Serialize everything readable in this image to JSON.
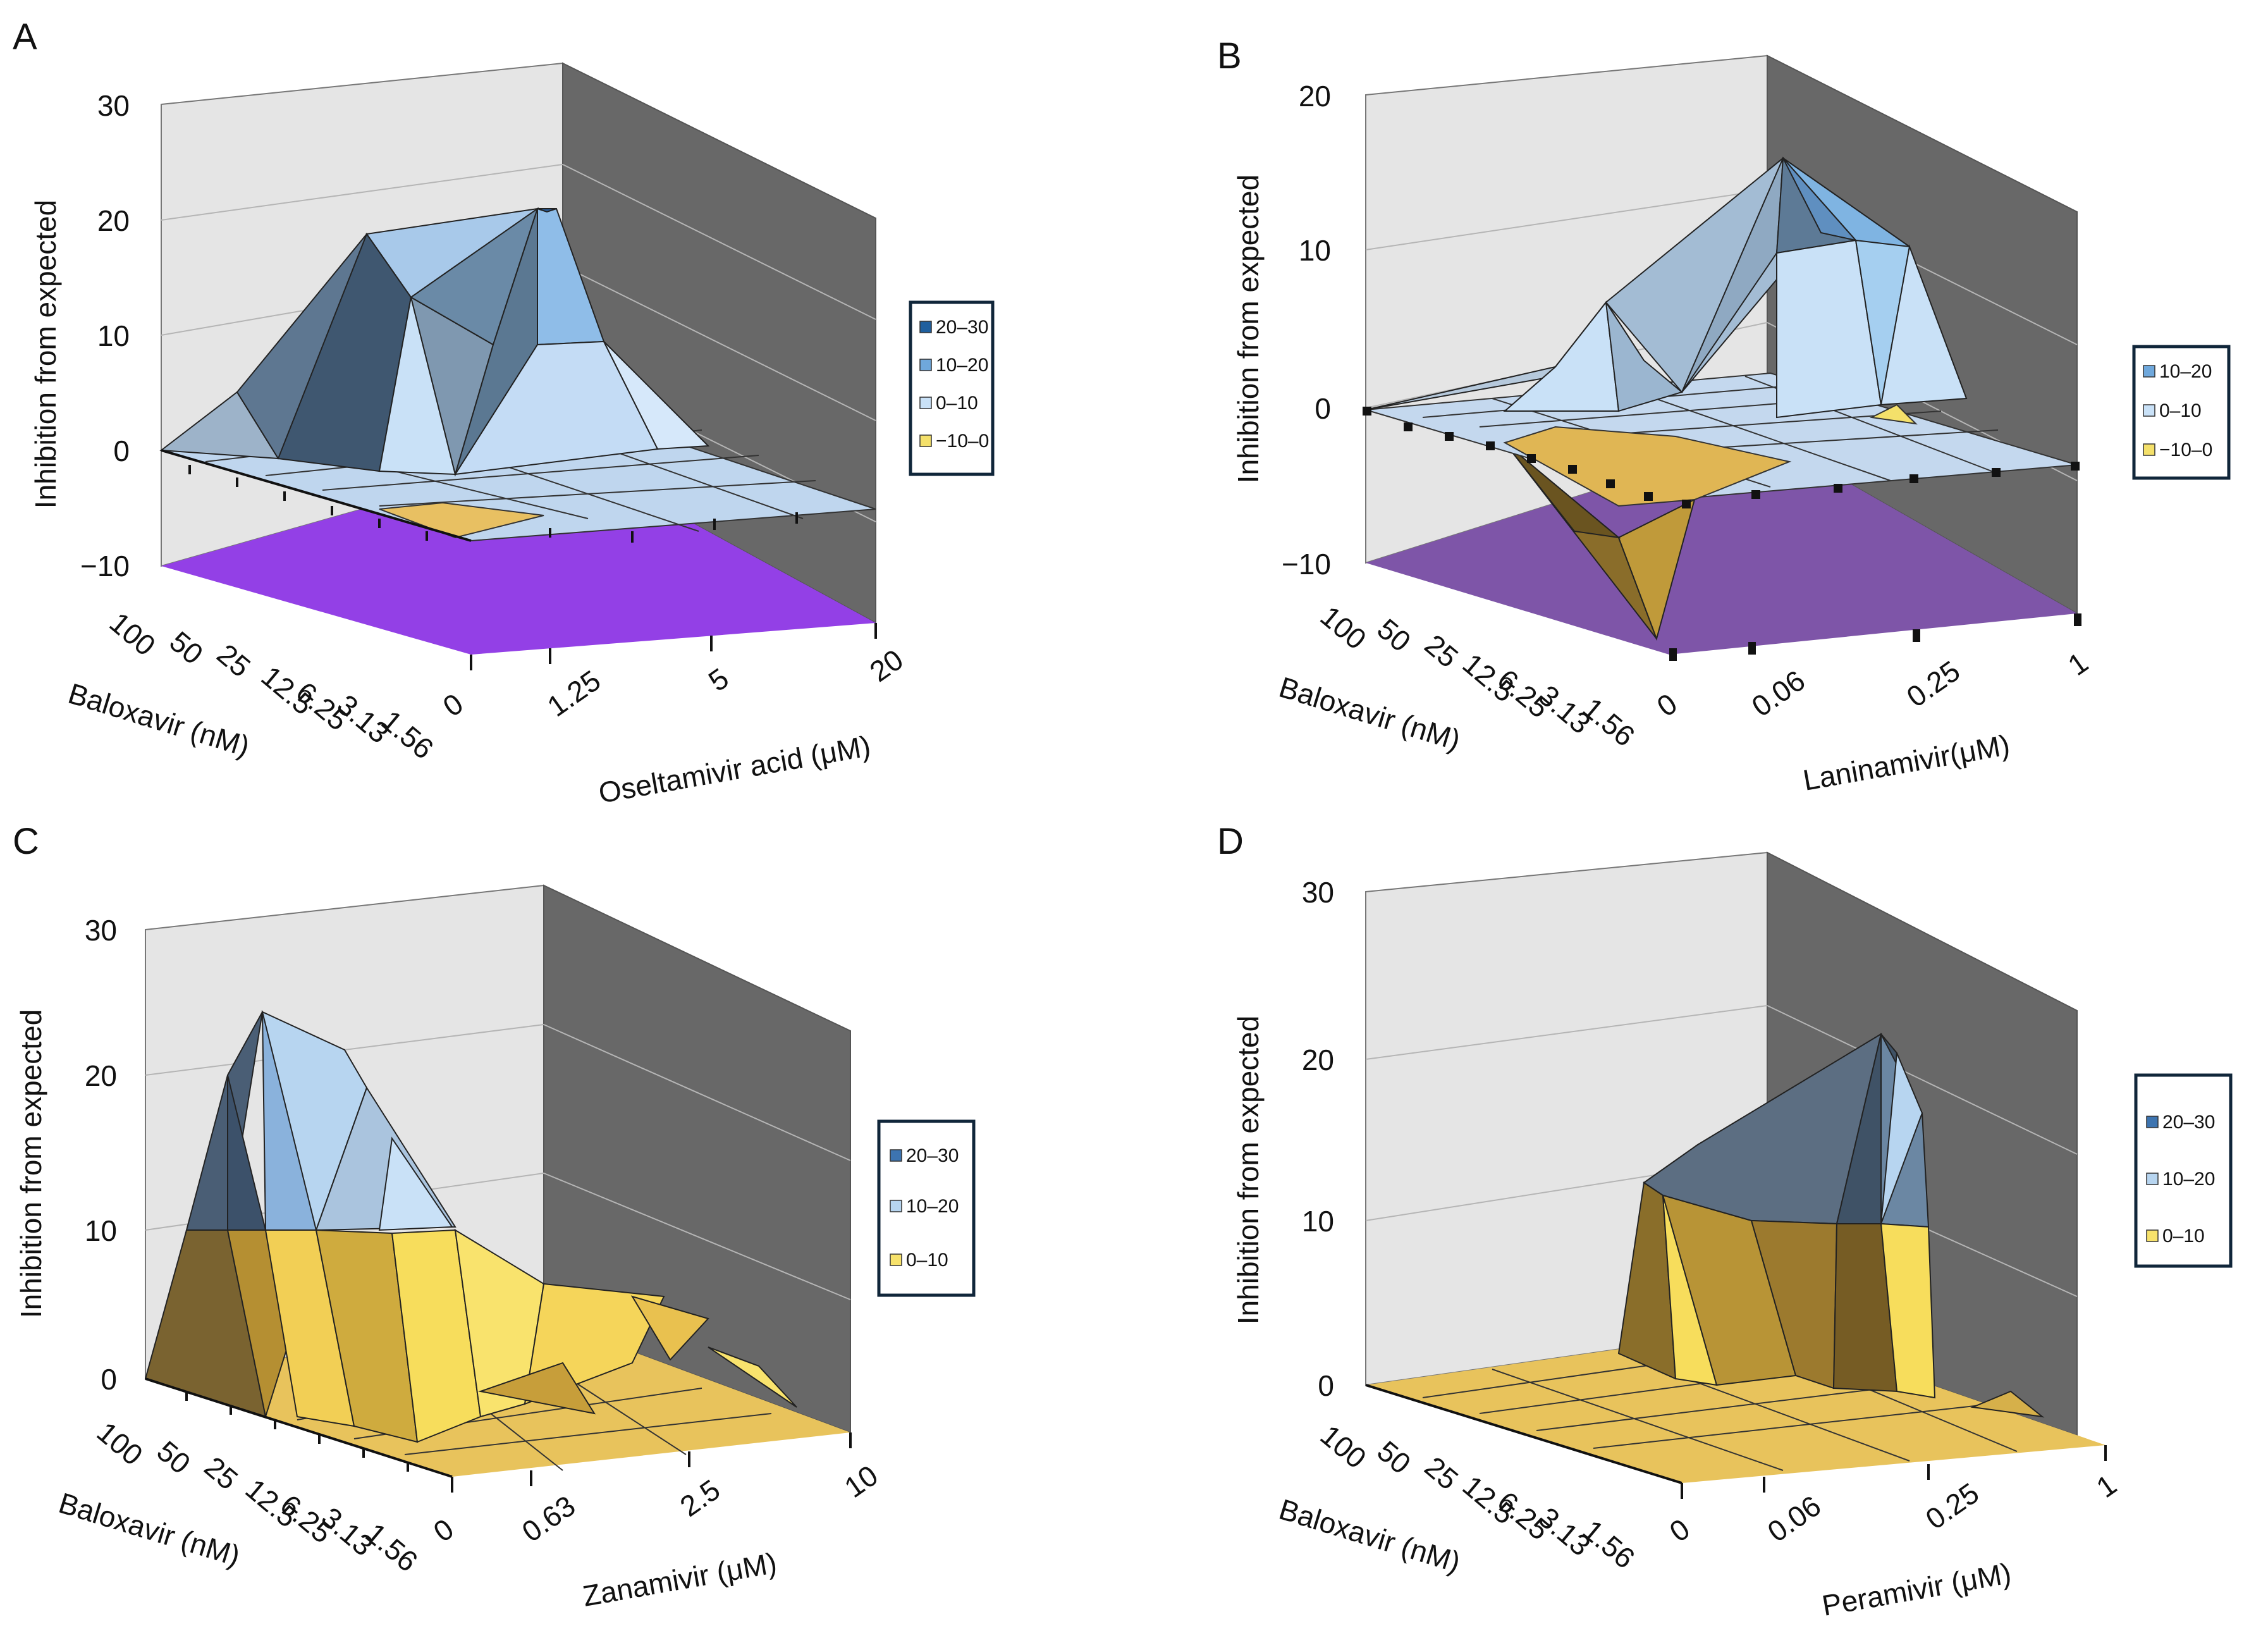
{
  "chart_data": [
    {
      "type": "surface3d",
      "panel_label": "A",
      "zlabel": "Inhibition from expected",
      "xlabel": "Baloxavir (nM)",
      "ylabel": "Oseltamivir acid (μM)",
      "x_ticks": [
        "100",
        "50",
        "25",
        "12.5",
        "6.25",
        "3.13",
        "1.56"
      ],
      "y_ticks": [
        "0",
        "1.25",
        "5",
        "20"
      ],
      "z_ticks": [
        "30",
        "20",
        "10",
        "0",
        "−10"
      ],
      "zlim": [
        -10,
        30
      ],
      "floor_color": "#9340e6",
      "legend": [
        {
          "label": "20–30",
          "color": "#1f5f9e"
        },
        {
          "label": "10–20",
          "color": "#6fa8dc"
        },
        {
          "label": "0–10",
          "color": "#c9e1f7"
        },
        {
          "label": "−10–0",
          "color": "#f4e06a"
        }
      ]
    },
    {
      "type": "surface3d",
      "panel_label": "B",
      "zlabel": "Inhibition from expected",
      "xlabel": "Baloxavir (nM)",
      "ylabel": "Laninamivir(μM)",
      "x_ticks": [
        "100",
        "50",
        "25",
        "12.5",
        "6.25",
        "3.13",
        "1.56"
      ],
      "y_ticks": [
        "0",
        "0.06",
        "0.25",
        "1"
      ],
      "z_ticks": [
        "20",
        "10",
        "0",
        "−10"
      ],
      "zlim": [
        -10,
        20
      ],
      "floor_color": "#7e55a8",
      "legend": [
        {
          "label": "10–20",
          "color": "#6fa8dc"
        },
        {
          "label": "0–10",
          "color": "#c9e1f7"
        },
        {
          "label": "−10–0",
          "color": "#f4e06a"
        }
      ]
    },
    {
      "type": "surface3d",
      "panel_label": "C",
      "zlabel": "Inhibition from expected",
      "xlabel": "Baloxavir (nM)",
      "ylabel": "Zanamivir (μM)",
      "x_ticks": [
        "100",
        "50",
        "25",
        "12.5",
        "6.25",
        "3.13",
        "1.56"
      ],
      "y_ticks": [
        "0",
        "0.63",
        "2.5",
        "10"
      ],
      "z_ticks": [
        "30",
        "20",
        "10",
        "0"
      ],
      "zlim": [
        0,
        30
      ],
      "legend": [
        {
          "label": "20–30",
          "color": "#3d74b0"
        },
        {
          "label": "10–20",
          "color": "#b7d5f0"
        },
        {
          "label": "0–10",
          "color": "#f7e26b"
        }
      ]
    },
    {
      "type": "surface3d",
      "panel_label": "D",
      "zlabel": "Inhibition from expected",
      "xlabel": "Baloxavir (nM)",
      "ylabel": "Peramivir (μM)",
      "x_ticks": [
        "100",
        "50",
        "25",
        "12.5",
        "6.25",
        "3.13",
        "1.56"
      ],
      "y_ticks": [
        "0",
        "0.06",
        "0.25",
        "1"
      ],
      "z_ticks": [
        "30",
        "20",
        "10",
        "0"
      ],
      "zlim": [
        0,
        30
      ],
      "legend": [
        {
          "label": "20–30",
          "color": "#3d74b0"
        },
        {
          "label": "10–20",
          "color": "#b7d5f0"
        },
        {
          "label": "0–10",
          "color": "#f7e26b"
        }
      ]
    }
  ]
}
